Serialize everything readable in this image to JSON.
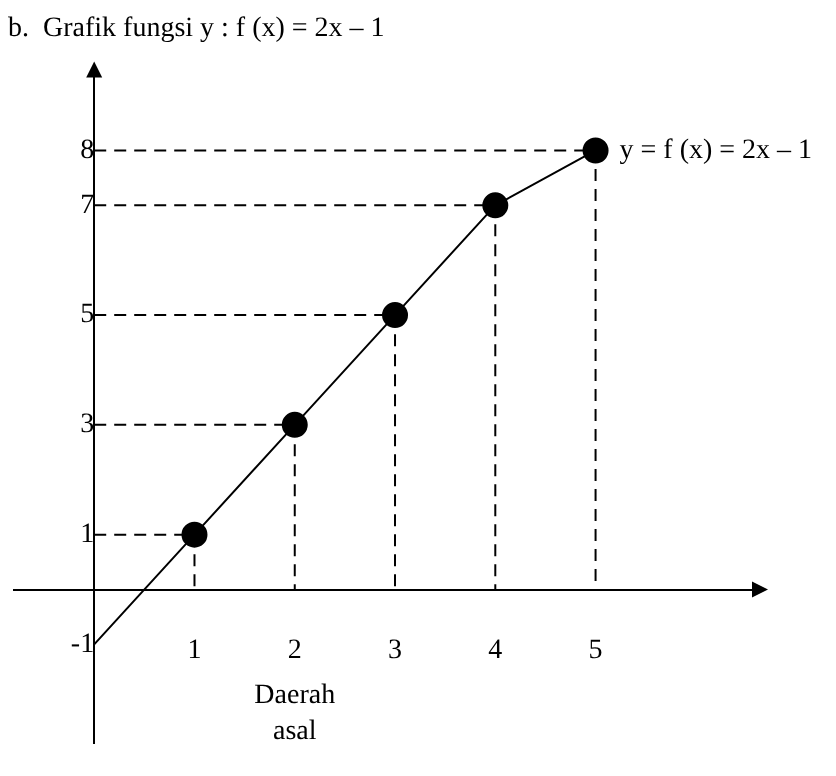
{
  "chart_data": {
    "type": "scatter",
    "title": "b.  Grafik fungsi y : f (x) = 2x – 1",
    "xlabel": "Daerah asal",
    "annotations": [
      {
        "text": "y = f (x) = 2x – 1",
        "x": 5,
        "y": 8
      }
    ],
    "xlim": [
      -0.8,
      6.6
    ],
    "ylim": [
      -2.8,
      9.4
    ],
    "xticks": [
      1,
      2,
      3,
      4,
      5
    ],
    "yticks": [
      -1,
      1,
      3,
      5,
      7,
      8
    ],
    "grid": false,
    "legend": false,
    "series": [
      {
        "type": "line",
        "x": [
          0,
          1,
          2,
          3,
          4,
          5
        ],
        "values": [
          -1,
          1,
          3,
          5,
          7,
          8
        ],
        "color": "#000000",
        "marker": "none",
        "line_style": "solid"
      },
      {
        "type": "line",
        "x": [
          0,
          1,
          1
        ],
        "values": [
          1,
          1,
          0
        ],
        "color": "#000000",
        "marker": "none",
        "line_style": "dashed"
      },
      {
        "type": "line",
        "x": [
          0,
          2,
          2
        ],
        "values": [
          3,
          3,
          0
        ],
        "color": "#000000",
        "marker": "none",
        "line_style": "dashed"
      },
      {
        "type": "line",
        "x": [
          0,
          3,
          3
        ],
        "values": [
          5,
          5,
          0
        ],
        "color": "#000000",
        "marker": "none",
        "line_style": "dashed"
      },
      {
        "type": "line",
        "x": [
          0,
          4,
          4
        ],
        "values": [
          7,
          7,
          0
        ],
        "color": "#000000",
        "marker": "none",
        "line_style": "dashed"
      },
      {
        "type": "line",
        "x": [
          0,
          5,
          5
        ],
        "values": [
          8,
          8,
          0
        ],
        "color": "#000000",
        "marker": "none",
        "line_style": "dashed"
      },
      {
        "type": "scatter",
        "x": [
          1,
          2,
          3,
          4,
          5
        ],
        "values": [
          1,
          3,
          5,
          7,
          8
        ],
        "color": "#000000",
        "marker": "circle"
      }
    ]
  }
}
